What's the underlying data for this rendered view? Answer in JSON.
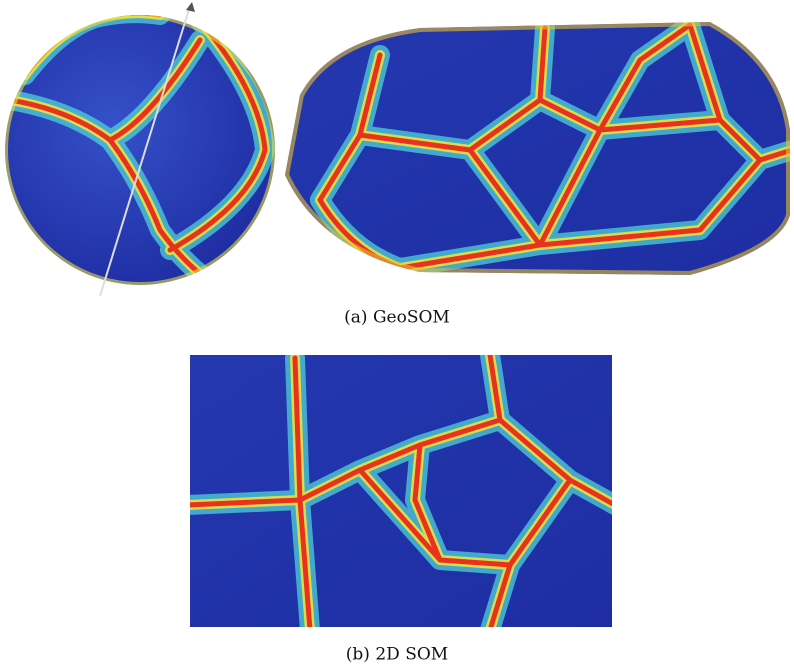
{
  "figure": {
    "panels": [
      {
        "caption": "(a) GeoSOM"
      },
      {
        "caption": "(b) 2D SOM"
      }
    ]
  }
}
